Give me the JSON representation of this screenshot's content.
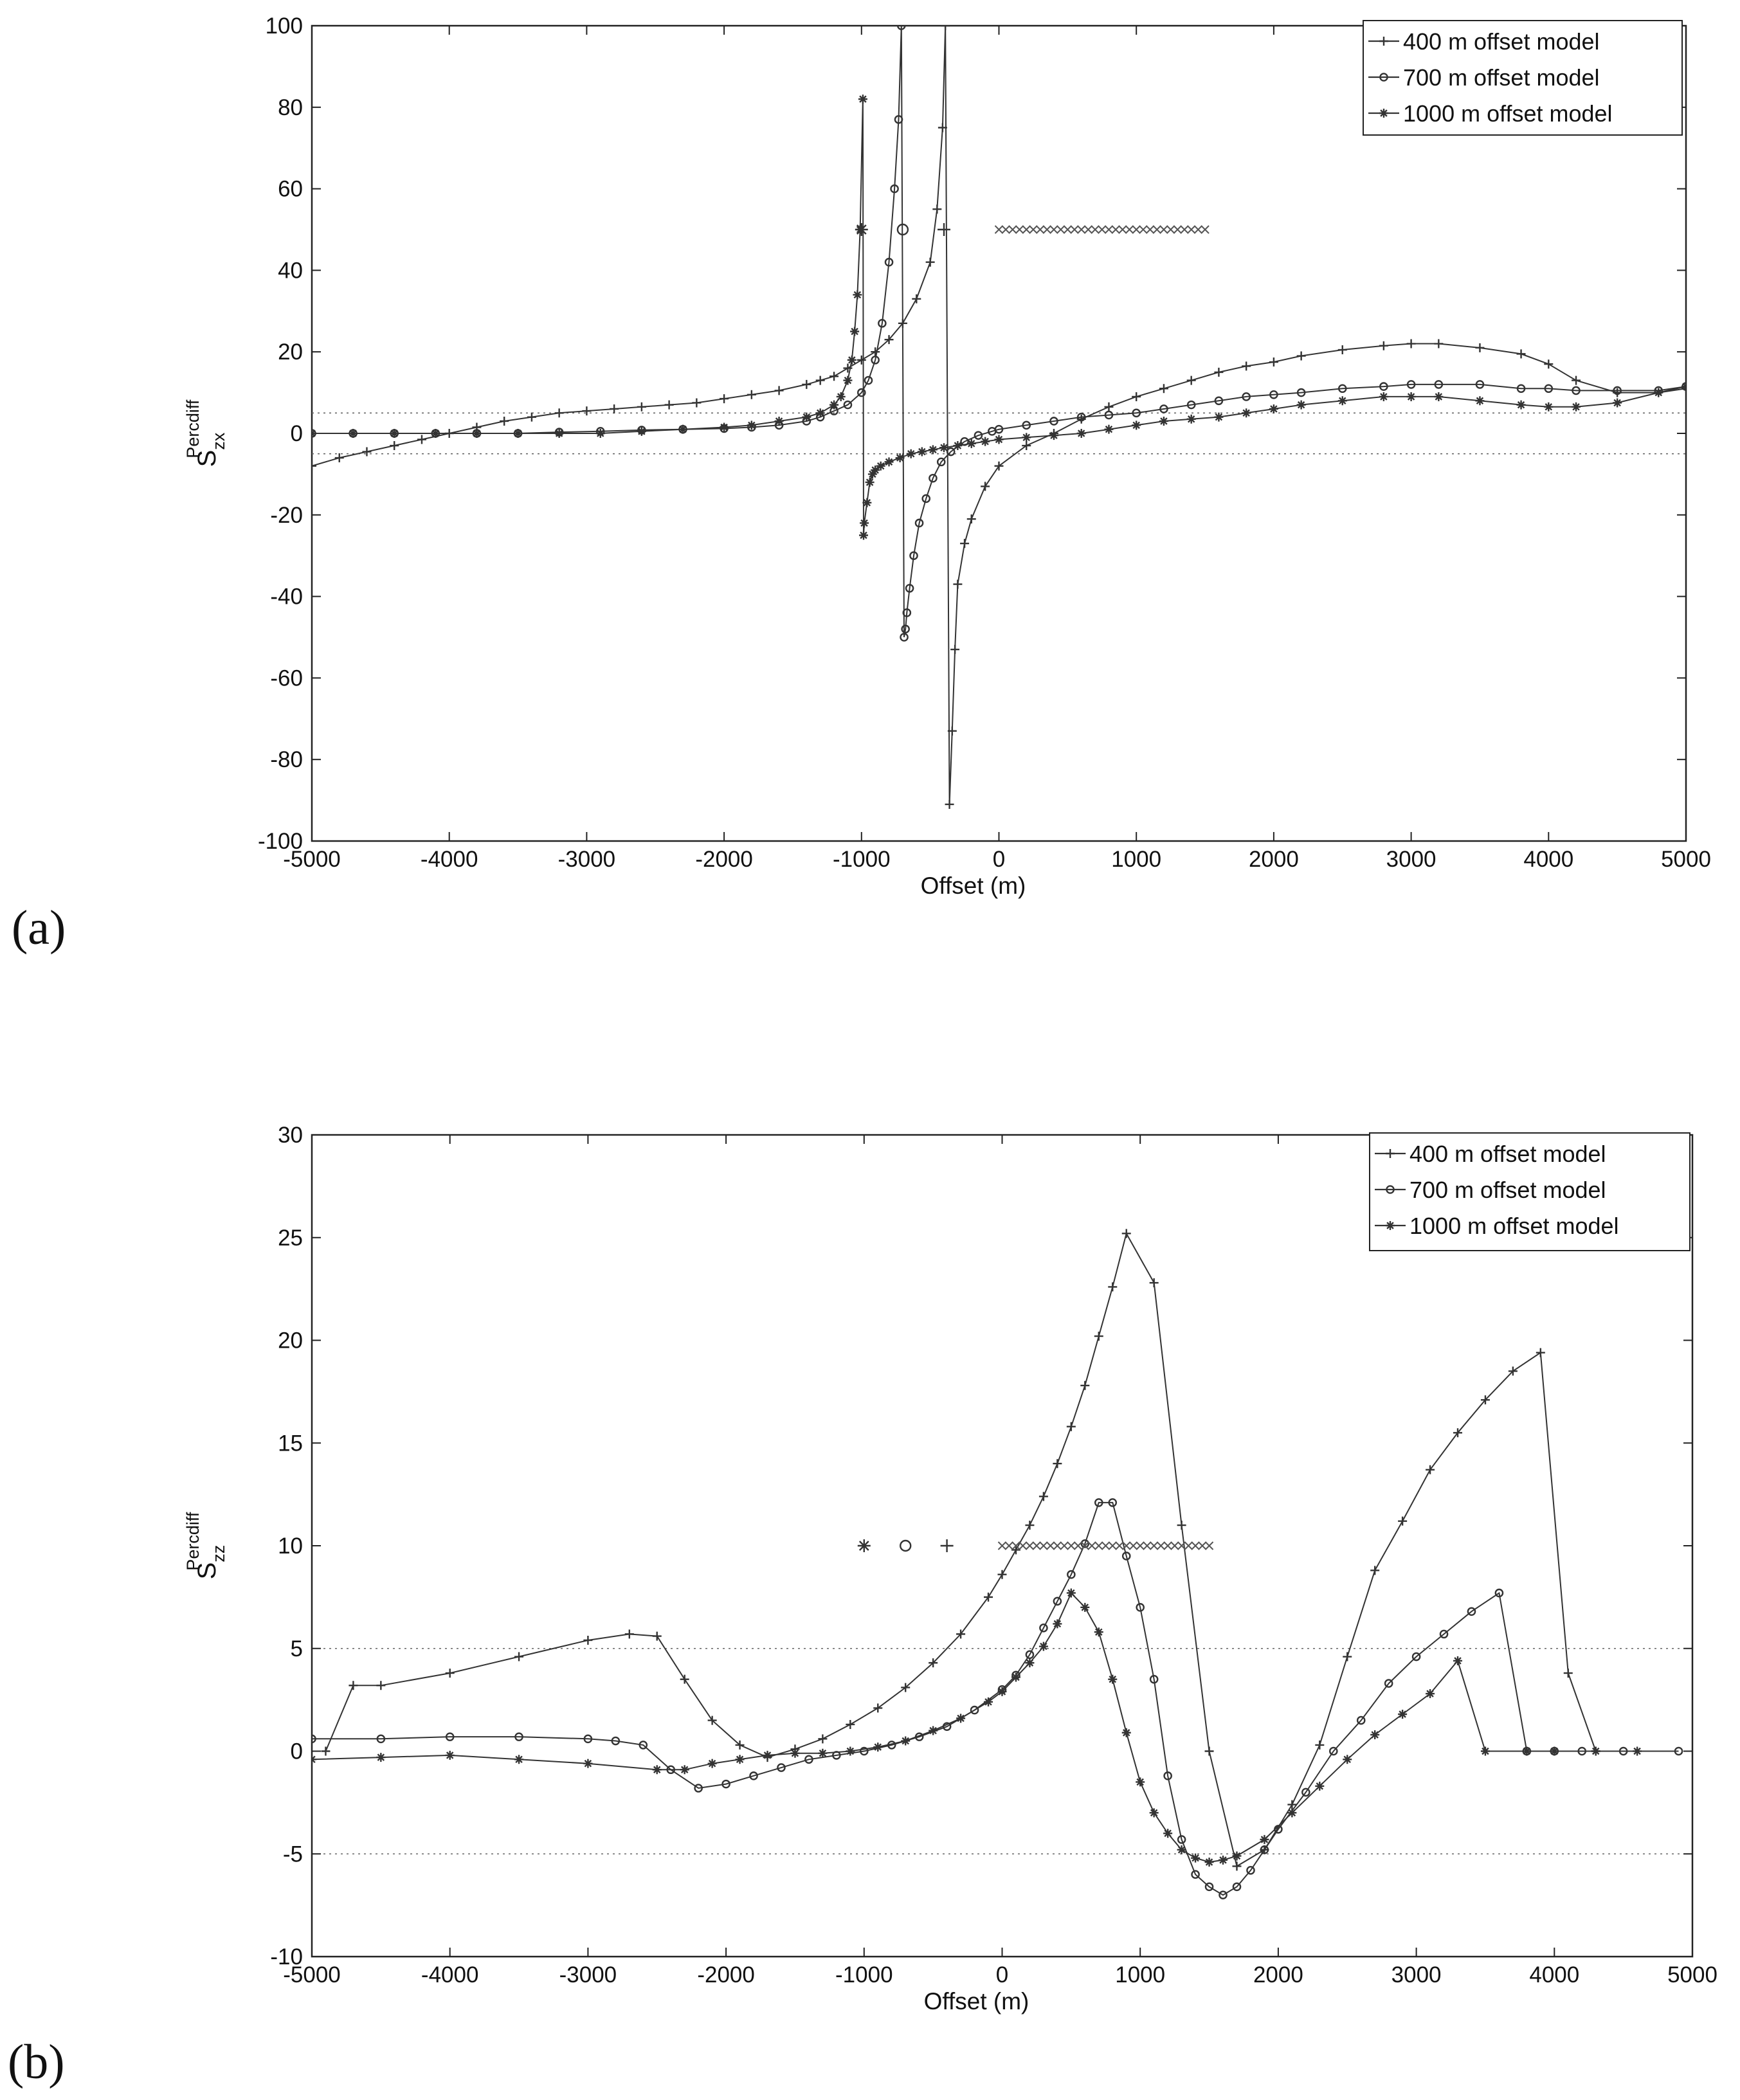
{
  "panel_labels": [
    "(a)",
    "(b)"
  ],
  "chart_data": [
    {
      "type": "line",
      "panel": "(a)",
      "title": "",
      "xlabel": "Offset (m)",
      "ylabel": {
        "main": "S",
        "sup": "Percdiff",
        "sub": "zx"
      },
      "xlim": [
        -5000,
        5000
      ],
      "ylim": [
        -100,
        100
      ],
      "xticks": [
        -5000,
        -4000,
        -3000,
        -2000,
        -1000,
        0,
        1000,
        2000,
        3000,
        4000,
        5000
      ],
      "yticks": [
        -100,
        -80,
        -60,
        -40,
        -20,
        0,
        20,
        40,
        60,
        80,
        100
      ],
      "threshold_lines": [
        5,
        -5
      ],
      "legend": {
        "position": "top-right",
        "entries": [
          "400 m offset model",
          "700 m offset model",
          "1000 m offset model"
        ]
      },
      "series": [
        {
          "name": "400 m offset model",
          "marker": "plus",
          "x": [
            -5000,
            -4800,
            -4600,
            -4400,
            -4200,
            -4000,
            -3800,
            -3600,
            -3400,
            -3200,
            -3000,
            -2800,
            -2600,
            -2400,
            -2200,
            -2000,
            -1800,
            -1600,
            -1400,
            -1300,
            -1200,
            -1100,
            -1000,
            -900,
            -800,
            -700,
            -600,
            -500,
            -450,
            -410,
            -390,
            -360,
            -340,
            -320,
            -300,
            -250,
            -200,
            -100,
            0,
            200,
            400,
            600,
            800,
            1000,
            1200,
            1400,
            1600,
            1800,
            2000,
            2200,
            2500,
            2800,
            3000,
            3200,
            3500,
            3800,
            4000,
            4200,
            4500,
            4800,
            5000
          ],
          "y": [
            -8,
            -6,
            -4.5,
            -3,
            -1.5,
            0,
            1.5,
            3,
            4,
            5,
            5.5,
            6,
            6.5,
            7,
            7.5,
            8.5,
            9.5,
            10.5,
            12,
            13,
            14,
            16,
            18,
            20,
            23,
            27,
            33,
            42,
            55,
            75,
            100,
            -91,
            -73,
            -53,
            -37,
            -27,
            -21,
            -13,
            -8,
            -3,
            0,
            3.5,
            6.5,
            9,
            11,
            13,
            15,
            16.5,
            17.5,
            19,
            20.5,
            21.5,
            22,
            22,
            21,
            19.5,
            17,
            13,
            10,
            10,
            11
          ]
        },
        {
          "name": "700 m offset model",
          "marker": "circle",
          "x": [
            -5000,
            -4700,
            -4400,
            -4100,
            -3800,
            -3500,
            -3200,
            -2900,
            -2600,
            -2300,
            -2000,
            -1800,
            -1600,
            -1400,
            -1300,
            -1200,
            -1100,
            -1000,
            -950,
            -900,
            -850,
            -800,
            -760,
            -730,
            -710,
            -690,
            -680,
            -670,
            -650,
            -620,
            -580,
            -530,
            -480,
            -420,
            -350,
            -250,
            -150,
            -50,
            0,
            200,
            400,
            600,
            800,
            1000,
            1200,
            1400,
            1600,
            1800,
            2000,
            2200,
            2500,
            2800,
            3000,
            3200,
            3500,
            3800,
            4000,
            4200,
            4500,
            4800,
            5000
          ],
          "y": [
            0,
            0,
            0,
            0,
            0,
            0,
            0.3,
            0.5,
            0.8,
            1,
            1.2,
            1.5,
            2,
            3,
            4,
            5.5,
            7,
            10,
            13,
            18,
            27,
            42,
            60,
            77,
            100,
            -50,
            -48,
            -44,
            -38,
            -30,
            -22,
            -16,
            -11,
            -7,
            -4.5,
            -2,
            -0.5,
            0.5,
            1,
            2,
            3,
            4,
            4.5,
            5,
            6,
            7,
            8,
            9,
            9.5,
            10,
            11,
            11.5,
            12,
            12,
            12,
            11,
            11,
            10.5,
            10.5,
            10.5,
            11.5
          ]
        },
        {
          "name": "1000 m offset model",
          "marker": "star",
          "x": [
            -5000,
            -4700,
            -4400,
            -4100,
            -3800,
            -3500,
            -3200,
            -2900,
            -2600,
            -2300,
            -2000,
            -1800,
            -1600,
            -1400,
            -1300,
            -1200,
            -1150,
            -1100,
            -1070,
            -1050,
            -1030,
            -1010,
            -990,
            -985,
            -980,
            -960,
            -940,
            -920,
            -900,
            -860,
            -800,
            -720,
            -640,
            -560,
            -480,
            -400,
            -300,
            -200,
            -100,
            0,
            200,
            400,
            600,
            800,
            1000,
            1200,
            1400,
            1600,
            1800,
            2000,
            2200,
            2500,
            2800,
            3000,
            3200,
            3500,
            3800,
            4000,
            4200,
            4500,
            4800,
            5000
          ],
          "y": [
            0,
            0,
            0,
            0,
            0,
            0,
            0,
            0,
            0.5,
            1,
            1.5,
            2,
            3,
            4,
            5,
            7,
            9,
            13,
            18,
            25,
            34,
            50,
            82,
            -25,
            -22,
            -17,
            -12,
            -10,
            -9,
            -8,
            -7,
            -6,
            -5,
            -4.5,
            -4,
            -3.5,
            -3,
            -2.5,
            -2,
            -1.5,
            -1,
            -0.5,
            0,
            1,
            2,
            3,
            3.5,
            4,
            5,
            6,
            7,
            8,
            9,
            9,
            9,
            8,
            7,
            6.5,
            6.5,
            7.5,
            10,
            11.5
          ]
        }
      ],
      "annotations": {
        "source_markers": [
          {
            "x": -1000,
            "y": 50,
            "marker": "star"
          },
          {
            "x": -700,
            "y": 50,
            "marker": "circle"
          },
          {
            "x": -400,
            "y": 50,
            "marker": "plus"
          }
        ],
        "receivers": {
          "x_start": 0,
          "x_end": 1500,
          "y": 50,
          "marker": "x"
        }
      }
    },
    {
      "type": "line",
      "panel": "(b)",
      "title": "",
      "xlabel": "Offset (m)",
      "ylabel": {
        "main": "S",
        "sup": "Percdiff",
        "sub": "zz"
      },
      "xlim": [
        -5000,
        5000
      ],
      "ylim": [
        -10,
        30
      ],
      "xticks": [
        -5000,
        -4000,
        -3000,
        -2000,
        -1000,
        0,
        1000,
        2000,
        3000,
        4000,
        5000
      ],
      "yticks": [
        -10,
        -5,
        0,
        5,
        10,
        15,
        20,
        25,
        30
      ],
      "threshold_lines": [
        5,
        -5
      ],
      "legend": {
        "position": "top-right",
        "entries": [
          "400 m offset model",
          "700 m offset model",
          "1000 m offset model"
        ]
      },
      "series": [
        {
          "name": "400 m offset model",
          "marker": "plus",
          "x": [
            -4900,
            -4700,
            -4500,
            -4000,
            -3500,
            -3000,
            -2700,
            -2500,
            -2300,
            -2100,
            -1900,
            -1700,
            -1500,
            -1300,
            -1100,
            -900,
            -700,
            -500,
            -300,
            -100,
            0,
            100,
            200,
            300,
            400,
            500,
            600,
            700,
            800,
            900,
            1100,
            1300,
            1500,
            1700,
            1900,
            2100,
            2300,
            2500,
            2700,
            2900,
            3100,
            3300,
            3500,
            3700,
            3900,
            4100,
            4300
          ],
          "y": [
            0,
            3.2,
            3.2,
            3.8,
            4.6,
            5.4,
            5.7,
            5.6,
            3.5,
            1.5,
            0.3,
            -0.3,
            0.1,
            0.6,
            1.3,
            2.1,
            3.1,
            4.3,
            5.7,
            7.5,
            8.6,
            9.8,
            11,
            12.4,
            14,
            15.8,
            17.8,
            20.2,
            22.6,
            25.2,
            22.8,
            11,
            0,
            -5.6,
            -4.8,
            -2.6,
            0.3,
            4.6,
            8.8,
            11.2,
            13.7,
            15.5,
            17.1,
            18.5,
            19.4,
            3.8,
            0
          ]
        },
        {
          "name": "700 m offset model",
          "marker": "circle",
          "x": [
            -5000,
            -4500,
            -4000,
            -3500,
            -3000,
            -2800,
            -2600,
            -2400,
            -2200,
            -2000,
            -1800,
            -1600,
            -1400,
            -1200,
            -1000,
            -800,
            -600,
            -400,
            -200,
            0,
            100,
            200,
            300,
            400,
            500,
            600,
            700,
            800,
            900,
            1000,
            1100,
            1200,
            1300,
            1400,
            1500,
            1600,
            1700,
            1800,
            1900,
            2000,
            2200,
            2400,
            2600,
            2800,
            3000,
            3200,
            3400,
            3600,
            3800,
            4000,
            4200,
            4500,
            4900
          ],
          "y": [
            0.6,
            0.6,
            0.7,
            0.7,
            0.6,
            0.5,
            0.3,
            -0.9,
            -1.8,
            -1.6,
            -1.2,
            -0.8,
            -0.4,
            -0.2,
            0,
            0.3,
            0.7,
            1.2,
            2,
            3,
            3.7,
            4.7,
            6,
            7.3,
            8.6,
            10.1,
            12.1,
            12.1,
            9.5,
            7,
            3.5,
            -1.2,
            -4.3,
            -6,
            -6.6,
            -7,
            -6.6,
            -5.8,
            -4.8,
            -3.8,
            -2,
            0,
            1.5,
            3.3,
            4.6,
            5.7,
            6.8,
            7.7,
            0,
            0,
            0,
            0,
            0
          ]
        },
        {
          "name": "1000 m offset model",
          "marker": "star",
          "x": [
            -5000,
            -4500,
            -4000,
            -3500,
            -3000,
            -2500,
            -2300,
            -2100,
            -1900,
            -1700,
            -1500,
            -1300,
            -1100,
            -900,
            -700,
            -500,
            -300,
            -100,
            0,
            100,
            200,
            300,
            400,
            500,
            600,
            700,
            800,
            900,
            1000,
            1100,
            1200,
            1300,
            1400,
            1500,
            1600,
            1700,
            1900,
            2100,
            2300,
            2500,
            2700,
            2900,
            3100,
            3300,
            3500,
            3800,
            4000,
            4300,
            4600
          ],
          "y": [
            -0.4,
            -0.3,
            -0.2,
            -0.4,
            -0.6,
            -0.9,
            -0.9,
            -0.6,
            -0.4,
            -0.2,
            -0.1,
            -0.1,
            0,
            0.2,
            0.5,
            1,
            1.6,
            2.4,
            2.9,
            3.6,
            4.3,
            5.1,
            6.2,
            7.7,
            7,
            5.8,
            3.5,
            0.9,
            -1.5,
            -3,
            -4,
            -4.8,
            -5.2,
            -5.4,
            -5.3,
            -5.1,
            -4.3,
            -3,
            -1.7,
            -0.4,
            0.8,
            1.8,
            2.8,
            4.4,
            0,
            0,
            0,
            0,
            0
          ]
        }
      ],
      "annotations": {
        "source_markers": [
          {
            "x": -1000,
            "y": 10,
            "marker": "star"
          },
          {
            "x": -700,
            "y": 10,
            "marker": "circle"
          },
          {
            "x": -400,
            "y": 10,
            "marker": "plus"
          }
        ],
        "receivers": {
          "x_start": 0,
          "x_end": 1500,
          "y": 10,
          "marker": "x"
        }
      }
    }
  ]
}
